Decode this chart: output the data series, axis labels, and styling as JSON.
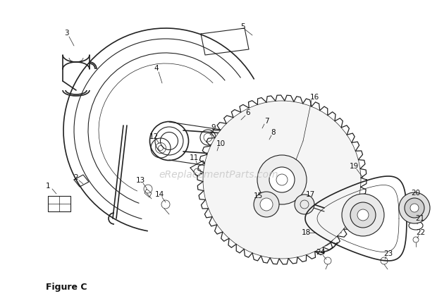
{
  "figure_label": "Figure C",
  "watermark": "eReplacementParts.com",
  "bg_color": "#ffffff",
  "line_color": "#222222",
  "watermark_color": "#c8c8c8",
  "label_color": "#111111",
  "fig_width": 6.2,
  "fig_height": 4.37,
  "dpi": 100
}
